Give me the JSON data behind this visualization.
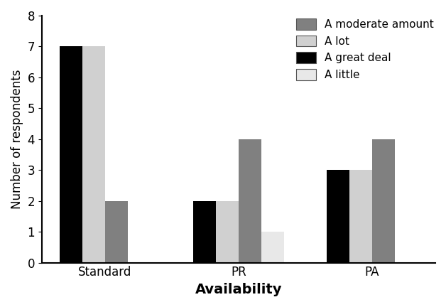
{
  "categories": [
    "Standard",
    "PR",
    "PA"
  ],
  "series_order": [
    "A great deal",
    "A lot",
    "A moderate amount",
    "A little"
  ],
  "series": {
    "A great deal": [
      7,
      2,
      3
    ],
    "A lot": [
      7,
      2,
      3
    ],
    "A moderate amount": [
      2,
      4,
      4
    ],
    "A little": [
      0,
      1,
      0
    ]
  },
  "bar_colors": {
    "A great deal": "#000000",
    "A lot": "#d0d0d0",
    "A moderate amount": "#808080",
    "A little": "#e8e8e8"
  },
  "legend_order": [
    "A moderate amount",
    "A lot",
    "A great deal",
    "A little"
  ],
  "ylabel": "Number of respondents",
  "xlabel": "Availability",
  "ylim": [
    0,
    8
  ],
  "yticks": [
    0,
    1,
    2,
    3,
    4,
    5,
    6,
    7,
    8
  ],
  "bar_width": 0.17,
  "ylabel_fontsize": 12,
  "xlabel_fontsize": 14,
  "tick_fontsize": 12,
  "legend_fontsize": 11
}
